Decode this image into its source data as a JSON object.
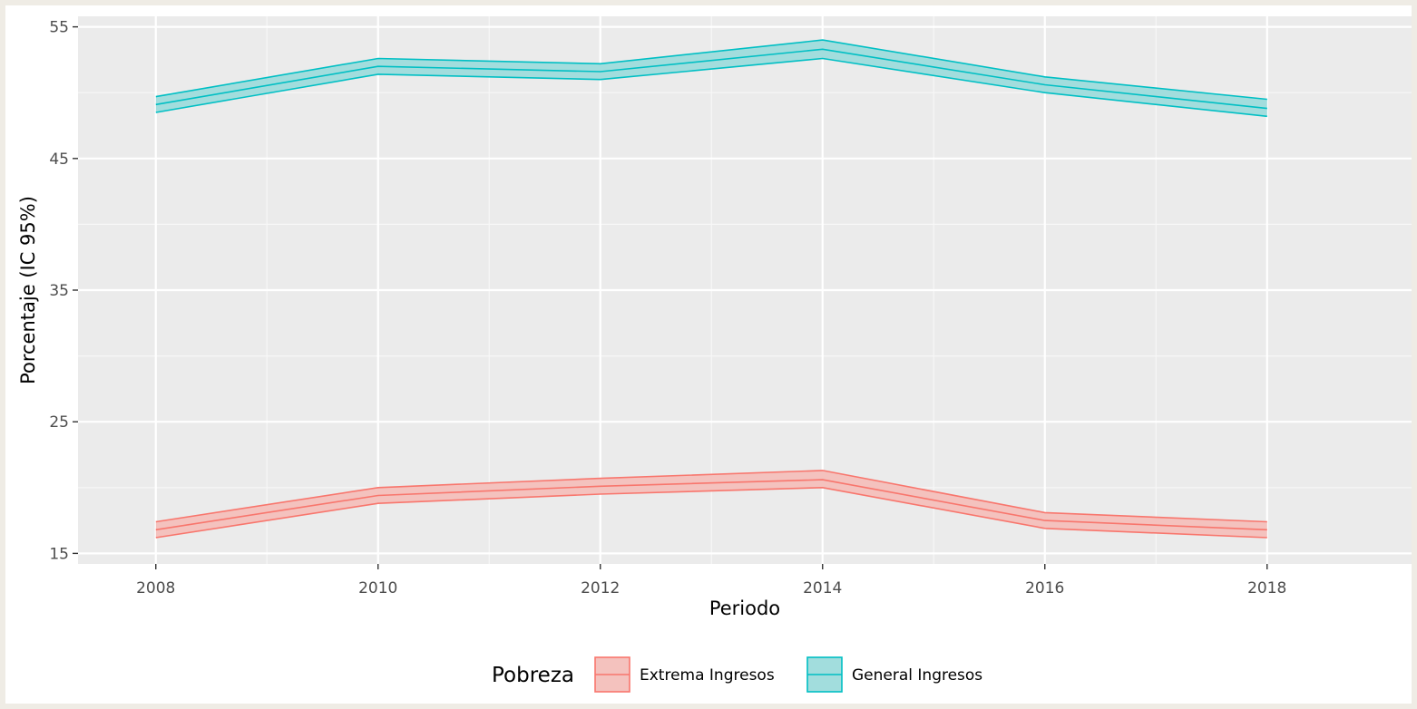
{
  "chart_data": {
    "type": "area",
    "title": "",
    "xlabel": "Periodo",
    "ylabel": "Porcentaje (IC 95%)",
    "xlim": [
      2007.3,
      2019.3
    ],
    "ylim": [
      14.2,
      55.8
    ],
    "x_ticks": [
      2008,
      2010,
      2012,
      2014,
      2016,
      2018
    ],
    "y_ticks": [
      15,
      25,
      35,
      45,
      55
    ],
    "grid": true,
    "legend": {
      "title": "Pobreza",
      "placement": "bottom"
    },
    "series": [
      {
        "name": "Extrema Ingresos",
        "color": "#f8766d",
        "fill": "#f4c2be",
        "x": [
          2008,
          2010,
          2012,
          2014,
          2016,
          2018
        ],
        "values": [
          16.8,
          19.4,
          20.1,
          20.6,
          17.5,
          16.8
        ],
        "lower": [
          16.2,
          18.8,
          19.5,
          20.0,
          16.9,
          16.2
        ],
        "upper": [
          17.4,
          20.0,
          20.7,
          21.3,
          18.1,
          17.4
        ]
      },
      {
        "name": "General Ingresos",
        "color": "#00bfc4",
        "fill": "#a2dddd",
        "x": [
          2008,
          2010,
          2012,
          2014,
          2016,
          2018
        ],
        "values": [
          49.1,
          52.0,
          51.6,
          53.3,
          50.6,
          48.8
        ],
        "lower": [
          48.5,
          51.4,
          51.0,
          52.6,
          50.0,
          48.2
        ],
        "upper": [
          49.7,
          52.6,
          52.2,
          54.0,
          51.2,
          49.5
        ]
      }
    ]
  }
}
